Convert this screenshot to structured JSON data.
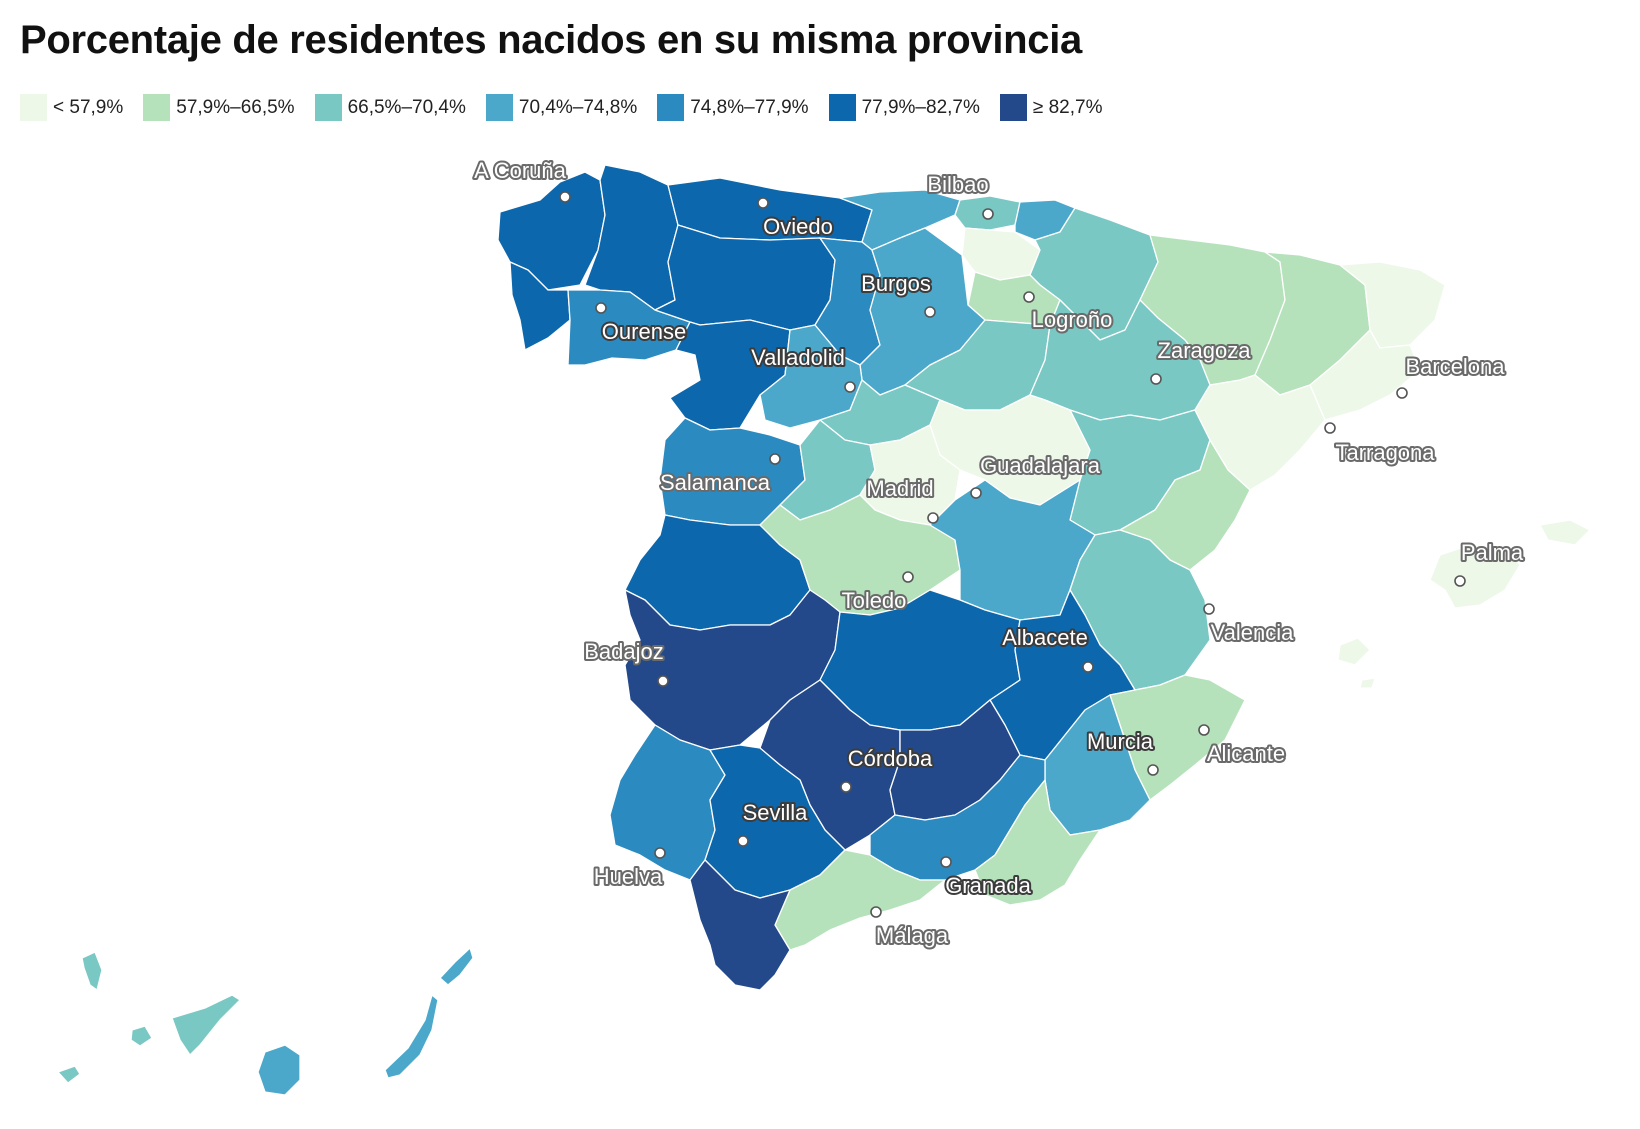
{
  "title": "Porcentaje de residentes nacidos en su misma provincia",
  "legend": [
    {
      "label": "< 57,9%",
      "color": "#edf8e9"
    },
    {
      "label": "57,9%–66,5%",
      "color": "#b5e2bb"
    },
    {
      "label": "66,5%–70,4%",
      "color": "#79c8c4"
    },
    {
      "label": "70,4%–74,8%",
      "color": "#4ba8cb"
    },
    {
      "label": "74,8%–77,9%",
      "color": "#2b8abf"
    },
    {
      "label": "77,9%–82,7%",
      "color": "#0c67ac"
    },
    {
      "label": "≥ 82,7%",
      "color": "#24498a"
    }
  ],
  "cities": [
    {
      "name": "A Coruña"
    },
    {
      "name": "Oviedo"
    },
    {
      "name": "Bilbao"
    },
    {
      "name": "Burgos"
    },
    {
      "name": "Logroño"
    },
    {
      "name": "Ourense"
    },
    {
      "name": "Valladolid"
    },
    {
      "name": "Zaragoza"
    },
    {
      "name": "Barcelona"
    },
    {
      "name": "Tarragona"
    },
    {
      "name": "Salamanca"
    },
    {
      "name": "Guadalajara"
    },
    {
      "name": "Madrid"
    },
    {
      "name": "Palma"
    },
    {
      "name": "Toledo"
    },
    {
      "name": "Valencia"
    },
    {
      "name": "Badajoz"
    },
    {
      "name": "Albacete"
    },
    {
      "name": "Córdoba"
    },
    {
      "name": "Murcia"
    },
    {
      "name": "Alicante"
    },
    {
      "name": "Sevilla"
    },
    {
      "name": "Huelva"
    },
    {
      "name": "Granada"
    },
    {
      "name": "Málaga"
    }
  ]
}
